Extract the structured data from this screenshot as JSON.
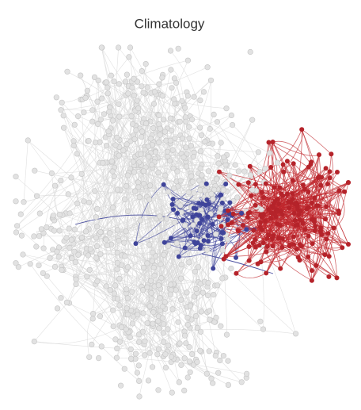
{
  "title": "Climatology"
}
